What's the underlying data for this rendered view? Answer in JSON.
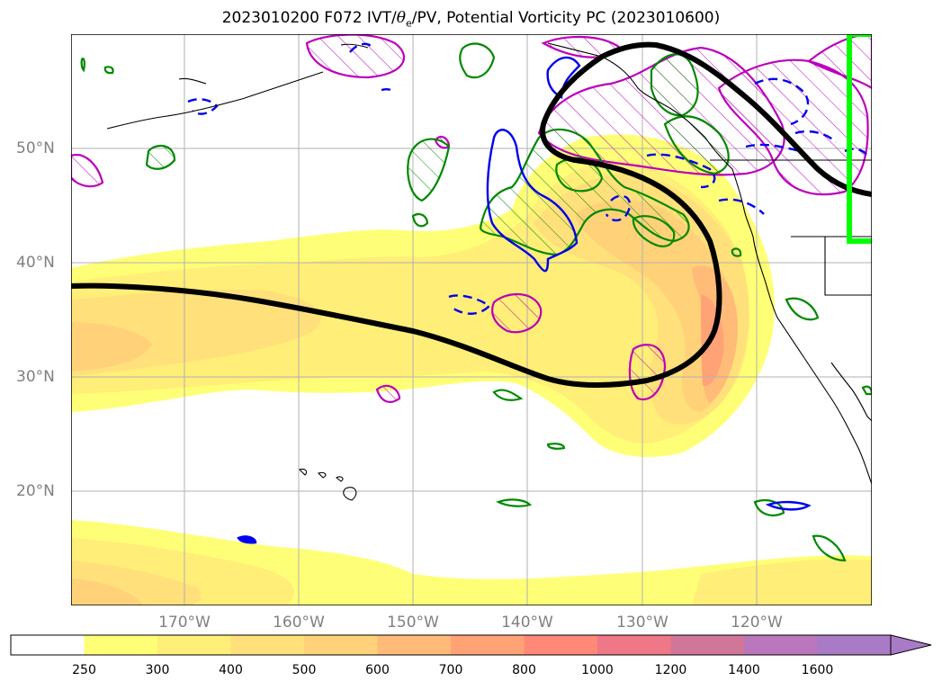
{
  "title": {
    "prefix": "2023010200 F072 IVT/",
    "theta": "θ",
    "theta_sub": "e",
    "suffix": "/PV, Potential Vorticity PC (2023010600)"
  },
  "map": {
    "lat_labels": [
      "50°N",
      "40°N",
      "30°N",
      "20°N"
    ],
    "lon_labels": [
      "170°W",
      "160°W",
      "150°W",
      "140°W",
      "130°W",
      "120°W"
    ]
  },
  "colorbar": {
    "levels": [
      "250",
      "300",
      "400",
      "500",
      "600",
      "700",
      "800",
      "1000",
      "1200",
      "1400",
      "1600"
    ],
    "colors": [
      "#ffffff",
      "#ffff77",
      "#ffee77",
      "#ffe07a",
      "#ffd27a",
      "#ffbb77",
      "#ffa377",
      "#ff8877",
      "#ee7788",
      "#d07799",
      "#bb77bb",
      "#a97ac6"
    ]
  },
  "colors": {
    "highlight_box": "#00ff00",
    "jet_line": "#000000",
    "pv_contour": "#bb00bb",
    "theta_e_contour": "#008800",
    "ivt_contour": "#0000ff"
  }
}
